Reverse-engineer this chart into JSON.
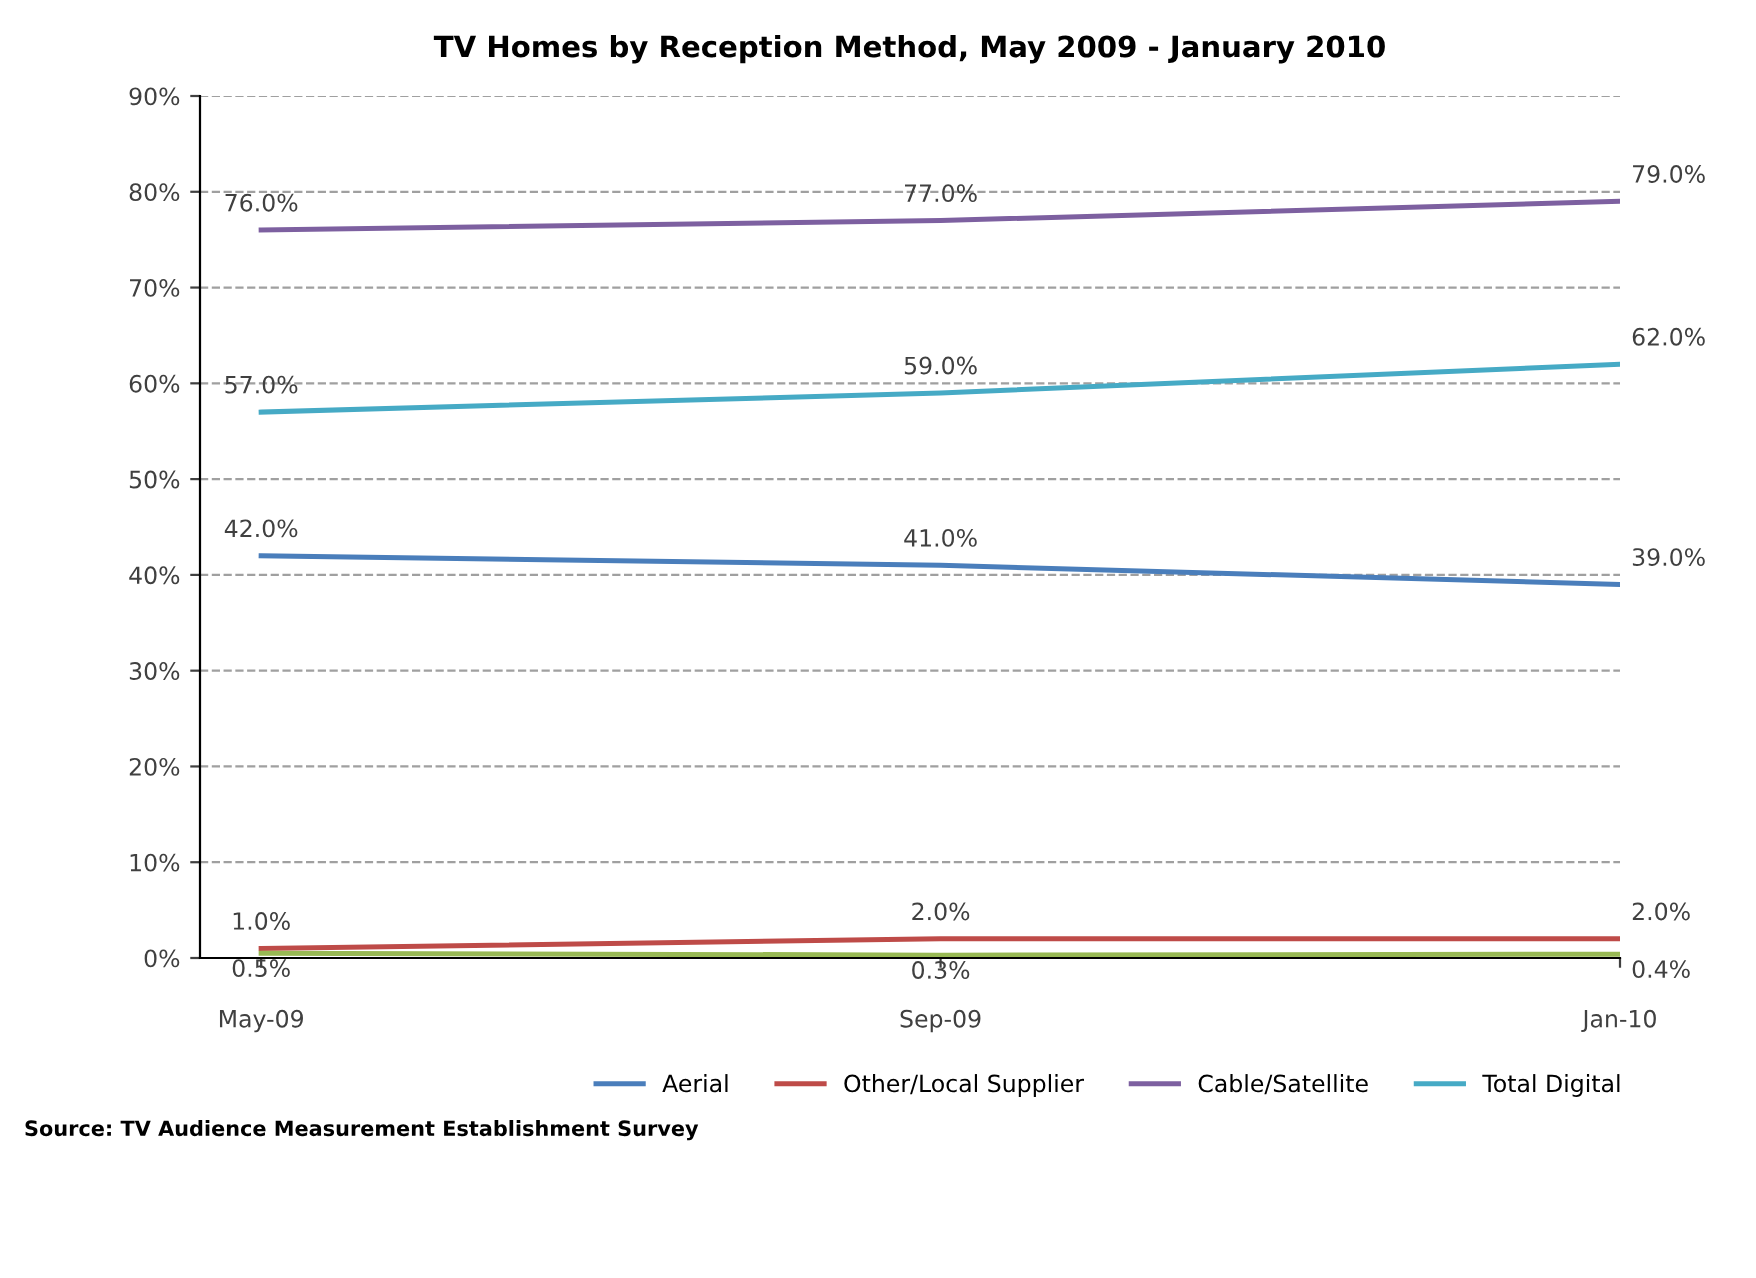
{
  "chart_data": {
    "type": "line",
    "title": "TV Homes by Reception Method, May 2009 - January 2010",
    "categories": [
      "May-09",
      "Sep-09",
      "Jan-10"
    ],
    "series": [
      {
        "name": "Aerial",
        "color": "#4a7ebb",
        "values": [
          42.0,
          41.0,
          39.0
        ],
        "value_labels": [
          "42.0%",
          "41.0%",
          "39.0%"
        ]
      },
      {
        "name": "Other/Local Supplier",
        "color": "#be4b48",
        "values": [
          1.0,
          2.0,
          2.0
        ],
        "value_labels": [
          "1.0%",
          "2.0%",
          "2.0%"
        ]
      },
      {
        "color": "#98b954",
        "values": [
          0.5,
          0.3,
          0.4
        ],
        "value_labels": [
          "0.5%",
          "0.3%",
          "0.4%"
        ]
      },
      {
        "name": "Cable/Satellite",
        "color": "#7d60a0",
        "values": [
          76.0,
          77.0,
          79.0
        ],
        "value_labels": [
          "76.0%",
          "77.0%",
          "79.0%"
        ]
      },
      {
        "name": "Total Digital",
        "color": "#46aac5",
        "values": [
          57.0,
          59.0,
          62.0
        ],
        "value_labels": [
          "57.0%",
          "59.0%",
          "62.0%"
        ]
      }
    ],
    "ylim": [
      0,
      90
    ],
    "yticks": [
      {
        "value": 0,
        "label": "0%"
      },
      {
        "value": 10,
        "label": "10%"
      },
      {
        "value": 20,
        "label": "20%"
      },
      {
        "value": 30,
        "label": "30%"
      },
      {
        "value": 40,
        "label": "40%"
      },
      {
        "value": 50,
        "label": "50%"
      },
      {
        "value": 60,
        "label": "60%"
      },
      {
        "value": 70,
        "label": "70%"
      },
      {
        "value": 80,
        "label": "80%"
      },
      {
        "value": 90,
        "label": "90%"
      }
    ],
    "grid": "y",
    "legend": "bottom",
    "marker": "none",
    "line_style": "solid",
    "annotations": [
      "Source: TV Audience Measurement Establishment Survey"
    ]
  }
}
